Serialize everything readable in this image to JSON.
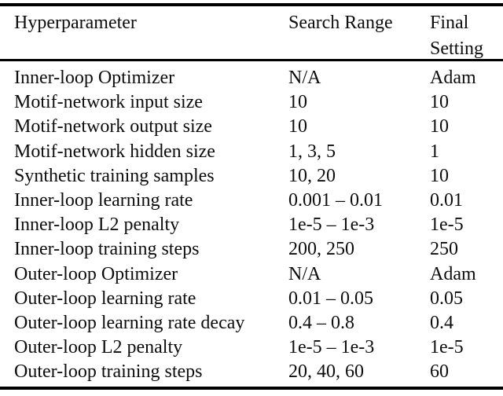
{
  "table": {
    "columns": [
      "Hyperparameter",
      "Search Range",
      "Final Setting"
    ],
    "rows": [
      {
        "name": "Inner-loop Optimizer",
        "search_range": "N/A",
        "final_setting": "Adam"
      },
      {
        "name": "Motif-network input size",
        "search_range": "10",
        "final_setting": "10"
      },
      {
        "name": "Motif-network output size",
        "search_range": "10",
        "final_setting": "10"
      },
      {
        "name": "Motif-network hidden size",
        "search_range": "1, 3, 5",
        "final_setting": "1"
      },
      {
        "name": "Synthetic training samples",
        "search_range": "10, 20",
        "final_setting": "10"
      },
      {
        "name": "Inner-loop learning rate",
        "search_range": "0.001 – 0.01",
        "final_setting": "0.01"
      },
      {
        "name": "Inner-loop L2 penalty",
        "search_range": "1e-5 – 1e-3",
        "final_setting": "1e-5"
      },
      {
        "name": "Inner-loop training steps",
        "search_range": "200, 250",
        "final_setting": "250"
      },
      {
        "name": "Outer-loop Optimizer",
        "search_range": "N/A",
        "final_setting": "Adam"
      },
      {
        "name": "Outer-loop learning rate",
        "search_range": "0.01 – 0.05",
        "final_setting": "0.05"
      },
      {
        "name": "Outer-loop learning rate decay",
        "search_range": "0.4 – 0.8",
        "final_setting": "0.4"
      },
      {
        "name": "Outer-loop L2 penalty",
        "search_range": "1e-5 – 1e-3",
        "final_setting": "1e-5"
      },
      {
        "name": "Outer-loop training steps",
        "search_range": "20, 40, 60",
        "final_setting": "60"
      }
    ],
    "colors": {
      "background": "#ffffff",
      "text": "#0d0d0d",
      "rule": "#000000"
    }
  }
}
